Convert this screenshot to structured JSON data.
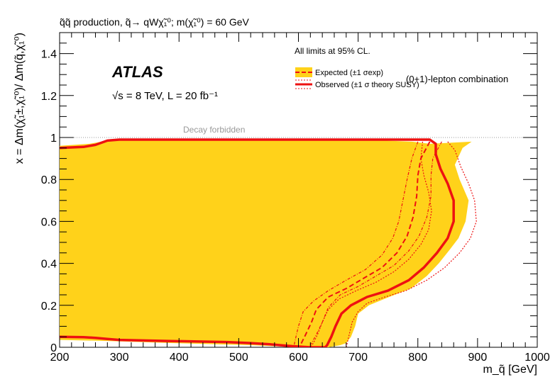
{
  "chart_data": {
    "type": "line",
    "title": "q̃q̃ production, q̃→ qWχ̃₁⁰; m(χ̃₁⁰) = 60 GeV",
    "xlabel": "m_q̃ [GeV]",
    "ylabel": "x = Δm(χ̃₁±,χ̃₁⁰)/ Δm(q̃,χ̃₁⁰)",
    "xlim": [
      200,
      1000
    ],
    "ylim": [
      0,
      1.5
    ],
    "x_ticks": [
      200,
      300,
      400,
      500,
      600,
      700,
      800,
      900,
      1000
    ],
    "y_ticks": [
      0,
      0.2,
      0.4,
      0.6,
      0.8,
      1,
      1.2,
      1.4
    ],
    "x_tick_labels": [
      "200",
      "300",
      "400",
      "500",
      "600",
      "700",
      "800",
      "900",
      "1000"
    ],
    "y_tick_labels": [
      "0",
      "0.2",
      "0.4",
      "0.6",
      "0.8",
      "1",
      "1.2",
      "1.4"
    ],
    "grid": false,
    "experiment_label": "ATLAS",
    "energy_label": "√s = 8 TeV, L = 20 fb⁻¹",
    "cl_note": "All limits at 95% CL.",
    "combination_label": "(0+1)-lepton combination",
    "forbidden_label": "Decay forbidden",
    "forbidden_y": 1.0,
    "legend_position": "top-right",
    "legend": [
      {
        "key": "expected",
        "label": "Expected (±1 σexp)"
      },
      {
        "key": "observed",
        "label": "Observed (±1 σ theory SUSY)"
      }
    ],
    "colors": {
      "band": "#ffd21a",
      "observed": "#ee1111",
      "forbidden": "#999999"
    },
    "series": [
      {
        "key": "expected_band",
        "points": [
          [
            200,
            0.96
          ],
          [
            250,
            0.97
          ],
          [
            270,
            0.98
          ],
          [
            290,
            0.99
          ],
          [
            700,
            0.99
          ],
          [
            790,
            0.98
          ],
          [
            820,
            0.97
          ],
          [
            890,
            0.98
          ],
          [
            875,
            0.95
          ],
          [
            862,
            0.87
          ],
          [
            870,
            0.8
          ],
          [
            885,
            0.7
          ],
          [
            880,
            0.6
          ],
          [
            868,
            0.52
          ],
          [
            852,
            0.46
          ],
          [
            835,
            0.4
          ],
          [
            815,
            0.34
          ],
          [
            788,
            0.28
          ],
          [
            752,
            0.24
          ],
          [
            718,
            0.2
          ],
          [
            700,
            0.16
          ],
          [
            695,
            0.1
          ],
          [
            688,
            0.05
          ],
          [
            680,
            0.02
          ],
          [
            670,
            0.01
          ],
          [
            650,
            0.0
          ],
          [
            600,
            0.0
          ],
          [
            520,
            0.01
          ],
          [
            390,
            0.02
          ],
          [
            280,
            0.03
          ],
          [
            200,
            0.035
          ],
          [
            200,
            0.96
          ]
        ]
      },
      {
        "key": "expected_center",
        "points": [
          [
            820,
            0.98
          ],
          [
            805,
            0.9
          ],
          [
            800,
            0.82
          ],
          [
            798,
            0.72
          ],
          [
            792,
            0.62
          ],
          [
            782,
            0.53
          ],
          [
            765,
            0.45
          ],
          [
            740,
            0.38
          ],
          [
            710,
            0.33
          ],
          [
            680,
            0.28
          ],
          [
            650,
            0.24
          ],
          [
            630,
            0.18
          ],
          [
            622,
            0.12
          ],
          [
            612,
            0.06
          ],
          [
            605,
            0.02
          ],
          [
            600,
            0.0
          ]
        ]
      },
      {
        "key": "expected_plus",
        "points": [
          [
            800,
            0.98
          ],
          [
            790,
            0.9
          ],
          [
            782,
            0.8
          ],
          [
            775,
            0.7
          ],
          [
            768,
            0.6
          ],
          [
            758,
            0.52
          ],
          [
            740,
            0.44
          ],
          [
            712,
            0.37
          ],
          [
            680,
            0.32
          ],
          [
            650,
            0.27
          ],
          [
            625,
            0.22
          ],
          [
            608,
            0.17
          ],
          [
            600,
            0.1
          ],
          [
            595,
            0.04
          ],
          [
            592,
            0.0
          ]
        ]
      },
      {
        "key": "expected_minus",
        "points": [
          [
            840,
            0.98
          ],
          [
            825,
            0.9
          ],
          [
            822,
            0.82
          ],
          [
            822,
            0.72
          ],
          [
            815,
            0.62
          ],
          [
            802,
            0.53
          ],
          [
            785,
            0.46
          ],
          [
            760,
            0.39
          ],
          [
            730,
            0.34
          ],
          [
            700,
            0.29
          ],
          [
            670,
            0.25
          ],
          [
            650,
            0.19
          ],
          [
            640,
            0.12
          ],
          [
            630,
            0.06
          ],
          [
            622,
            0.02
          ],
          [
            618,
            0.0
          ]
        ]
      },
      {
        "key": "observed",
        "points": [
          [
            200,
            0.95
          ],
          [
            240,
            0.955
          ],
          [
            260,
            0.965
          ],
          [
            280,
            0.985
          ],
          [
            300,
            0.99
          ],
          [
            820,
            0.99
          ],
          [
            830,
            0.97
          ],
          [
            830,
            0.92
          ],
          [
            838,
            0.85
          ],
          [
            850,
            0.78
          ],
          [
            860,
            0.7
          ],
          [
            860,
            0.6
          ],
          [
            850,
            0.52
          ],
          [
            832,
            0.45
          ],
          [
            810,
            0.38
          ],
          [
            785,
            0.32
          ],
          [
            750,
            0.27
          ],
          [
            715,
            0.24
          ],
          [
            688,
            0.2
          ],
          [
            672,
            0.16
          ],
          [
            662,
            0.1
          ],
          [
            655,
            0.05
          ],
          [
            648,
            0.01
          ],
          [
            645,
            0.0
          ],
          [
            620,
            0.0
          ],
          [
            590,
            0.005
          ],
          [
            550,
            0.015
          ],
          [
            520,
            0.02
          ],
          [
            480,
            0.025
          ],
          [
            380,
            0.03
          ],
          [
            300,
            0.035
          ],
          [
            280,
            0.04
          ],
          [
            260,
            0.045
          ],
          [
            240,
            0.048
          ],
          [
            200,
            0.05
          ]
        ]
      },
      {
        "key": "observed_plus",
        "points": [
          [
            850,
            0.98
          ],
          [
            862,
            0.94
          ],
          [
            872,
            0.86
          ],
          [
            885,
            0.78
          ],
          [
            895,
            0.7
          ],
          [
            898,
            0.6
          ],
          [
            888,
            0.52
          ],
          [
            870,
            0.45
          ],
          [
            845,
            0.38
          ],
          [
            815,
            0.32
          ],
          [
            780,
            0.27
          ],
          [
            745,
            0.24
          ],
          [
            715,
            0.21
          ],
          [
            700,
            0.17
          ],
          [
            690,
            0.12
          ],
          [
            685,
            0.06
          ],
          [
            680,
            0.0
          ]
        ]
      },
      {
        "key": "observed_minus",
        "points": [
          [
            808,
            0.98
          ],
          [
            805,
            0.9
          ],
          [
            810,
            0.82
          ],
          [
            818,
            0.74
          ],
          [
            823,
            0.65
          ],
          [
            818,
            0.56
          ],
          [
            805,
            0.49
          ],
          [
            785,
            0.42
          ],
          [
            760,
            0.36
          ],
          [
            730,
            0.31
          ],
          [
            697,
            0.27
          ],
          [
            668,
            0.23
          ],
          [
            650,
            0.18
          ],
          [
            640,
            0.12
          ],
          [
            632,
            0.06
          ],
          [
            625,
            0.02
          ],
          [
            620,
            0.0
          ]
        ]
      }
    ]
  }
}
